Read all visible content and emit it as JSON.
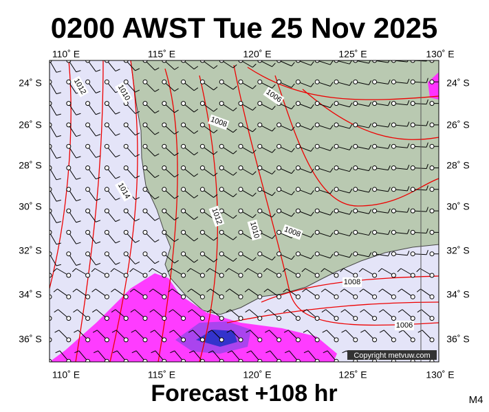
{
  "header": {
    "title": "0200 AWST Tue 25 Nov 2025"
  },
  "axes": {
    "longitude_labels": [
      "110˚ E",
      "115˚ E",
      "120˚ E",
      "125˚ E",
      "130˚ E"
    ],
    "latitude_labels": [
      "24˚ S",
      "26˚ S",
      "28˚ S",
      "30˚ S",
      "32˚ S",
      "34˚ S",
      "36˚ S"
    ]
  },
  "isobar_labels": [
    "1012",
    "1010",
    "1006",
    "1008",
    "1014",
    "1012",
    "1010",
    "1008",
    "1008",
    "1006"
  ],
  "copyright": "Copyright metvuw.com",
  "footer": {
    "forecast": "Forecast +108 hr",
    "model": "M4"
  }
}
